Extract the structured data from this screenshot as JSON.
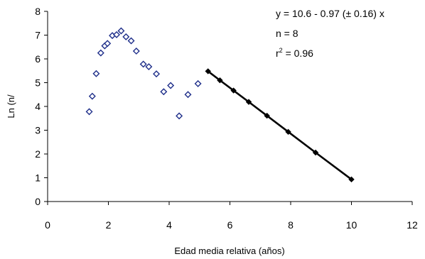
{
  "chart_data": {
    "type": "scatter",
    "title": "",
    "xlabel": "Edad media relativa (años)",
    "ylabel": "Ln (n/",
    "xlim": [
      0,
      12
    ],
    "ylim": [
      0,
      8
    ],
    "x_ticks": [
      "0",
      "2",
      "4",
      "6",
      "8",
      "10",
      "12"
    ],
    "y_ticks": [
      "0",
      "1",
      "2",
      "3",
      "4",
      "5",
      "6",
      "7",
      "8"
    ],
    "grid": false,
    "legend": "none",
    "series": [
      {
        "style": "scatter-hollow-diamond",
        "color": "#1f2f8a",
        "x": [
          1.37,
          1.47,
          1.6,
          1.75,
          1.88,
          1.97,
          2.13,
          2.27,
          2.42,
          2.58,
          2.75,
          2.92,
          3.15,
          3.33,
          3.58,
          3.82,
          4.05,
          4.33,
          4.62,
          4.95
        ],
        "y": [
          3.78,
          4.43,
          5.38,
          6.25,
          6.55,
          6.65,
          6.98,
          7.02,
          7.18,
          6.93,
          6.76,
          6.33,
          5.78,
          5.67,
          5.37,
          4.62,
          4.88,
          3.6,
          4.5,
          4.96
        ]
      },
      {
        "style": "line-with-markers",
        "color": "#000000",
        "x": [
          5.28,
          5.67,
          6.12,
          6.62,
          7.22,
          7.92,
          8.82,
          10.0
        ],
        "y": [
          5.48,
          5.1,
          4.67,
          4.19,
          3.61,
          2.93,
          2.06,
          0.93
        ]
      }
    ],
    "annotations": {
      "equation": "y = 10.6 - 0.97 (± 0.16) x",
      "n": "n = 8",
      "r2_prefix": "r",
      "r2_exponent": "2",
      "r2_value": " = 0.96"
    }
  }
}
